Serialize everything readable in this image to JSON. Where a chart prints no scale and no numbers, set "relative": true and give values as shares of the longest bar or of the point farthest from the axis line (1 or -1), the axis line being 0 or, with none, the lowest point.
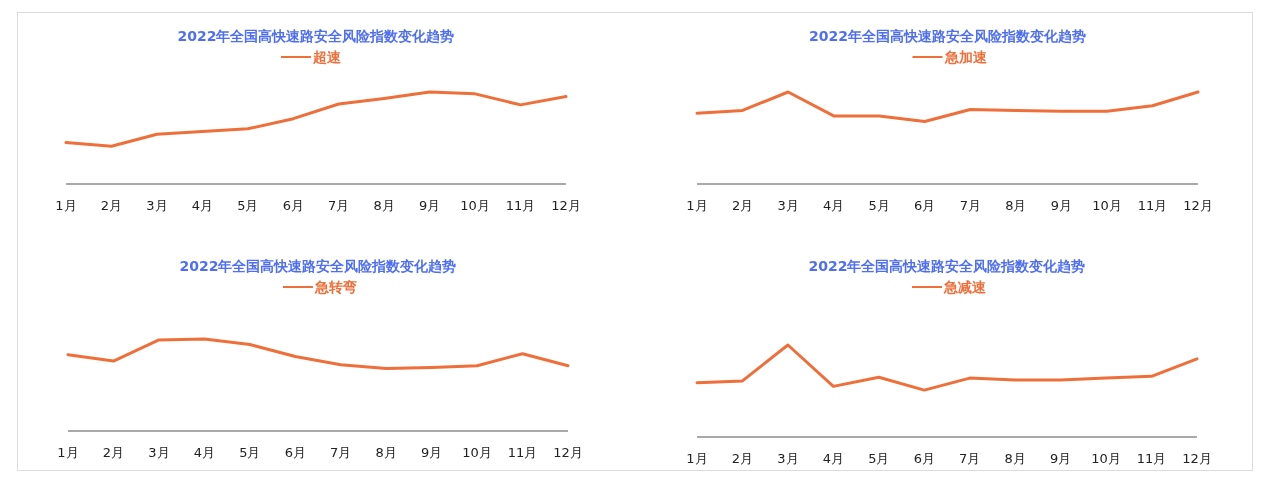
{
  "chart_data": [
    {
      "type": "line",
      "title": "2022年全国高快速路安全风险指数变化趋势",
      "categories": [
        "1月",
        "2月",
        "3月",
        "4月",
        "5月",
        "6月",
        "7月",
        "8月",
        "9月",
        "10月",
        "11月",
        "12月"
      ],
      "relative": true,
      "legend": "top",
      "series": [
        {
          "name": "超速",
          "color": "#ee6f3a",
          "values": [
            0.45,
            0.41,
            0.54,
            0.57,
            0.6,
            0.71,
            0.87,
            0.93,
            1,
            0.98,
            0.86,
            0.95
          ]
        }
      ]
    },
    {
      "type": "line",
      "title": "2022年全国高快速路安全风险指数变化趋势",
      "categories": [
        "1月",
        "2月",
        "3月",
        "4月",
        "5月",
        "6月",
        "7月",
        "8月",
        "9月",
        "10月",
        "11月",
        "12月"
      ],
      "relative": true,
      "legend": "top",
      "series": [
        {
          "name": "急加速",
          "color": "#ee6f3a",
          "values": [
            0.77,
            0.8,
            1,
            0.74,
            0.74,
            0.68,
            0.81,
            0.8,
            0.79,
            0.79,
            0.85,
            1
          ]
        }
      ]
    },
    {
      "type": "line",
      "title": "2022年全国高快速路安全风险指数变化趋势",
      "categories": [
        "1月",
        "2月",
        "3月",
        "4月",
        "5月",
        "6月",
        "7月",
        "8月",
        "9月",
        "10月",
        "11月",
        "12月"
      ],
      "relative": true,
      "legend": "top",
      "series": [
        {
          "name": "急转弯",
          "color": "#ee6f3a",
          "values": [
            0.83,
            0.76,
            0.99,
            1,
            0.94,
            0.81,
            0.72,
            0.68,
            0.69,
            0.71,
            0.84,
            0.71
          ]
        }
      ]
    },
    {
      "type": "line",
      "title": "2022年全国高快速路安全风险指数变化趋势",
      "categories": [
        "1月",
        "2月",
        "3月",
        "4月",
        "5月",
        "6月",
        "7月",
        "8月",
        "9月",
        "10月",
        "11月",
        "12月"
      ],
      "relative": true,
      "legend": "top",
      "series": [
        {
          "name": "急减速",
          "color": "#ee6f3a",
          "values": [
            0.59,
            0.61,
            1,
            0.55,
            0.65,
            0.51,
            0.64,
            0.62,
            0.62,
            0.64,
            0.66,
            0.85
          ]
        }
      ]
    }
  ]
}
